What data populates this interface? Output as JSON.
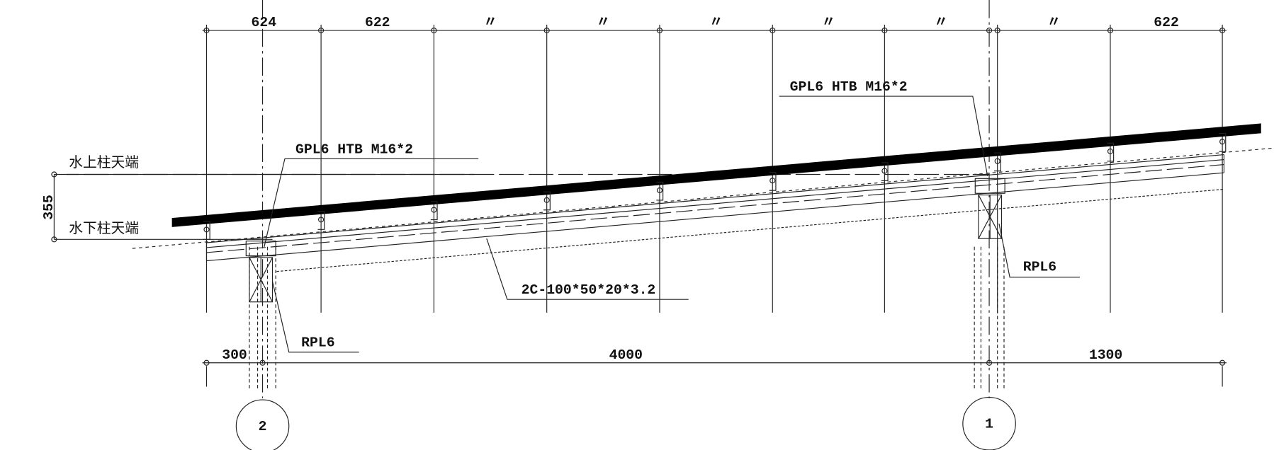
{
  "top_dimensions": [
    "624",
    "622",
    "〃",
    "〃",
    "〃",
    "〃",
    "〃",
    "〃",
    "622"
  ],
  "bottom_dimensions": [
    "300",
    "4000",
    "1300"
  ],
  "levels": {
    "upper": "水上柱天端",
    "lower": "水下柱天端",
    "height": "355"
  },
  "callouts": {
    "gpl_left": "GPL6  HTB  M16*2",
    "gpl_right": "GPL6  HTB  M16*2",
    "purlin": "2C-100*50*20*3.2",
    "rpl_left": "RPL6",
    "rpl_right": "RPL6"
  },
  "grid_labels": [
    "2",
    "1"
  ]
}
